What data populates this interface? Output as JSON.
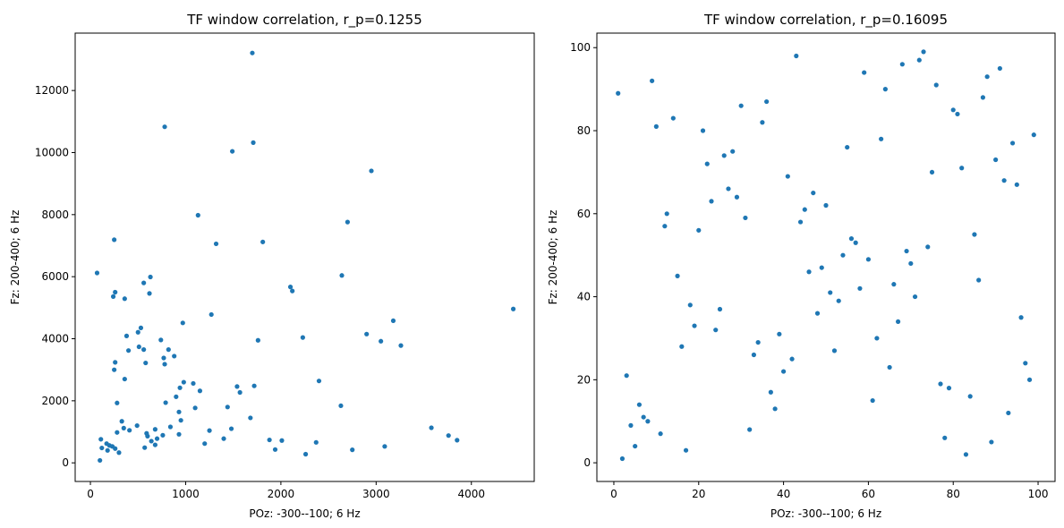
{
  "chart_data": [
    {
      "type": "scatter",
      "title": "TF window correlation, r_p=0.1255",
      "xlabel": "POz: -300--100; 6 Hz",
      "ylabel": "Fz: 200-400; 6 Hz",
      "xlim": [
        -160,
        4660
      ],
      "ylim": [
        -600,
        13850
      ],
      "xticks": [
        0,
        1000,
        2000,
        3000,
        4000
      ],
      "yticks": [
        0,
        2000,
        4000,
        6000,
        8000,
        10000,
        12000
      ],
      "grid": false,
      "marker_color": "#1f77b4",
      "points": [
        [
          70,
          6120
        ],
        [
          100,
          80
        ],
        [
          110,
          760
        ],
        [
          120,
          480
        ],
        [
          170,
          620
        ],
        [
          180,
          400
        ],
        [
          200,
          560
        ],
        [
          230,
          530
        ],
        [
          240,
          5360
        ],
        [
          250,
          7190
        ],
        [
          250,
          3000
        ],
        [
          260,
          460
        ],
        [
          260,
          5500
        ],
        [
          260,
          3240
        ],
        [
          280,
          1930
        ],
        [
          280,
          980
        ],
        [
          300,
          330
        ],
        [
          330,
          1340
        ],
        [
          350,
          1120
        ],
        [
          360,
          5290
        ],
        [
          360,
          2700
        ],
        [
          380,
          4090
        ],
        [
          400,
          3620
        ],
        [
          410,
          1050
        ],
        [
          490,
          1200
        ],
        [
          500,
          4210
        ],
        [
          510,
          3740
        ],
        [
          530,
          4350
        ],
        [
          560,
          5800
        ],
        [
          560,
          3650
        ],
        [
          570,
          490
        ],
        [
          580,
          3220
        ],
        [
          590,
          950
        ],
        [
          600,
          860
        ],
        [
          620,
          5460
        ],
        [
          630,
          5990
        ],
        [
          640,
          700
        ],
        [
          680,
          580
        ],
        [
          680,
          1080
        ],
        [
          700,
          780
        ],
        [
          740,
          3960
        ],
        [
          760,
          890
        ],
        [
          770,
          3380
        ],
        [
          780,
          10830
        ],
        [
          780,
          3180
        ],
        [
          790,
          1940
        ],
        [
          820,
          3650
        ],
        [
          840,
          1160
        ],
        [
          880,
          3440
        ],
        [
          900,
          2130
        ],
        [
          930,
          920
        ],
        [
          930,
          1640
        ],
        [
          940,
          2420
        ],
        [
          950,
          1370
        ],
        [
          970,
          4510
        ],
        [
          980,
          2600
        ],
        [
          1080,
          2560
        ],
        [
          1100,
          1770
        ],
        [
          1130,
          7980
        ],
        [
          1150,
          2320
        ],
        [
          1200,
          620
        ],
        [
          1250,
          1040
        ],
        [
          1270,
          4780
        ],
        [
          1320,
          7060
        ],
        [
          1400,
          780
        ],
        [
          1440,
          1800
        ],
        [
          1480,
          1100
        ],
        [
          1490,
          10040
        ],
        [
          1540,
          2460
        ],
        [
          1570,
          2270
        ],
        [
          1680,
          1450
        ],
        [
          1700,
          13210
        ],
        [
          1710,
          10320
        ],
        [
          1720,
          2480
        ],
        [
          1760,
          3950
        ],
        [
          1810,
          7120
        ],
        [
          1880,
          740
        ],
        [
          1940,
          430
        ],
        [
          2010,
          720
        ],
        [
          2100,
          5670
        ],
        [
          2120,
          5540
        ],
        [
          2230,
          4040
        ],
        [
          2260,
          280
        ],
        [
          2370,
          660
        ],
        [
          2400,
          2640
        ],
        [
          2630,
          1840
        ],
        [
          2640,
          6040
        ],
        [
          2700,
          7760
        ],
        [
          2750,
          420
        ],
        [
          2900,
          4150
        ],
        [
          2950,
          9410
        ],
        [
          3050,
          3920
        ],
        [
          3090,
          530
        ],
        [
          3180,
          4580
        ],
        [
          3260,
          3780
        ],
        [
          3580,
          1130
        ],
        [
          3760,
          880
        ],
        [
          3850,
          730
        ],
        [
          4440,
          4960
        ]
      ]
    },
    {
      "type": "scatter",
      "title": "TF window correlation, r_p=0.16095",
      "xlabel": "POz: -300--100; 6 Hz",
      "ylabel": "Fz: 200-400; 6 Hz",
      "xlim": [
        -4,
        104
      ],
      "ylim": [
        -4.5,
        103.5
      ],
      "xticks": [
        0,
        20,
        40,
        60,
        80,
        100
      ],
      "yticks": [
        0,
        20,
        40,
        60,
        80,
        100
      ],
      "grid": false,
      "marker_color": "#1f77b4",
      "points": [
        [
          1,
          89
        ],
        [
          2,
          1
        ],
        [
          3,
          21
        ],
        [
          4,
          9
        ],
        [
          5,
          4
        ],
        [
          6,
          14
        ],
        [
          7,
          11
        ],
        [
          8,
          10
        ],
        [
          9,
          92
        ],
        [
          10,
          81
        ],
        [
          11,
          7
        ],
        [
          12,
          57
        ],
        [
          12.5,
          60
        ],
        [
          14,
          83
        ],
        [
          15,
          45
        ],
        [
          16,
          28
        ],
        [
          17,
          3
        ],
        [
          18,
          38
        ],
        [
          19,
          33
        ],
        [
          20,
          56
        ],
        [
          21,
          80
        ],
        [
          22,
          72
        ],
        [
          23,
          63
        ],
        [
          24,
          32
        ],
        [
          25,
          37
        ],
        [
          26,
          74
        ],
        [
          27,
          66
        ],
        [
          28,
          75
        ],
        [
          29,
          64
        ],
        [
          30,
          86
        ],
        [
          31,
          59
        ],
        [
          32,
          8
        ],
        [
          33,
          26
        ],
        [
          34,
          29
        ],
        [
          35,
          82
        ],
        [
          36,
          87
        ],
        [
          37,
          17
        ],
        [
          38,
          13
        ],
        [
          39,
          31
        ],
        [
          40,
          22
        ],
        [
          41,
          69
        ],
        [
          42,
          25
        ],
        [
          43,
          98
        ],
        [
          44,
          58
        ],
        [
          45,
          61
        ],
        [
          46,
          46
        ],
        [
          47,
          65
        ],
        [
          48,
          36
        ],
        [
          49,
          47
        ],
        [
          50,
          62
        ],
        [
          51,
          41
        ],
        [
          52,
          27
        ],
        [
          53,
          39
        ],
        [
          54,
          50
        ],
        [
          55,
          76
        ],
        [
          56,
          54
        ],
        [
          57,
          53
        ],
        [
          58,
          42
        ],
        [
          59,
          94
        ],
        [
          60,
          49
        ],
        [
          61,
          15
        ],
        [
          62,
          30
        ],
        [
          63,
          78
        ],
        [
          64,
          90
        ],
        [
          65,
          23
        ],
        [
          66,
          43
        ],
        [
          67,
          34
        ],
        [
          68,
          96
        ],
        [
          69,
          51
        ],
        [
          70,
          48
        ],
        [
          71,
          40
        ],
        [
          72,
          97
        ],
        [
          73,
          99
        ],
        [
          74,
          52
        ],
        [
          75,
          70
        ],
        [
          76,
          91
        ],
        [
          77,
          19
        ],
        [
          78,
          6
        ],
        [
          79,
          18
        ],
        [
          80,
          85
        ],
        [
          81,
          84
        ],
        [
          82,
          71
        ],
        [
          83,
          2
        ],
        [
          84,
          16
        ],
        [
          85,
          55
        ],
        [
          86,
          44
        ],
        [
          87,
          88
        ],
        [
          88,
          93
        ],
        [
          89,
          5
        ],
        [
          90,
          73
        ],
        [
          91,
          95
        ],
        [
          92,
          68
        ],
        [
          93,
          12
        ],
        [
          94,
          77
        ],
        [
          95,
          67
        ],
        [
          96,
          35
        ],
        [
          97,
          24
        ],
        [
          98,
          20
        ],
        [
          99,
          79
        ]
      ]
    }
  ]
}
